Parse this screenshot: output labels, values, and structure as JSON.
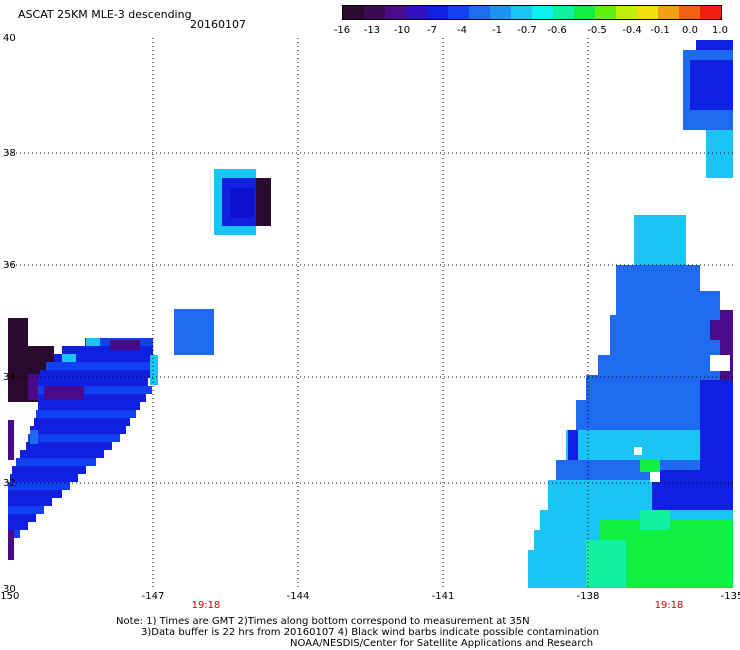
{
  "header": {
    "title": "ASCAT 25KM MLE-3 descending",
    "date": "20160107"
  },
  "colorbar": {
    "colors": [
      "#2a0a2e",
      "#3a0a52",
      "#4a0a8a",
      "#3010c0",
      "#1020e0",
      "#1040f0",
      "#1e6af0",
      "#1a95f5",
      "#19c5f5",
      "#10f0f0",
      "#10f0a0",
      "#10f040",
      "#60f010",
      "#c0f010",
      "#f0e010",
      "#f0a010",
      "#f06010",
      "#f02010"
    ],
    "labels": [
      "-16",
      "-13",
      "-10",
      "-7",
      "-4",
      "-1",
      "-0.7",
      "-0.6",
      "-0.5",
      "-0.4",
      "-0.1",
      "0.0",
      "1.0"
    ]
  },
  "axes": {
    "x_ticks": [
      "-150",
      "-147",
      "-144",
      "-141",
      "-138",
      "-135"
    ],
    "y_ticks": [
      "40",
      "38",
      "36",
      "34",
      "32",
      "30"
    ],
    "time_labels": [
      "19:18",
      "19:18"
    ]
  },
  "notes": {
    "line1": "Note: 1) Times are GMT 2)Times along bottom correspond to measurement at 35N",
    "line2": "3)Data buffer is 22 hrs from 20160107 4) Black wind barbs indicate possible contamination",
    "line3": "NOAA/NESDIS/Center for Satellite Applications and Research"
  }
}
